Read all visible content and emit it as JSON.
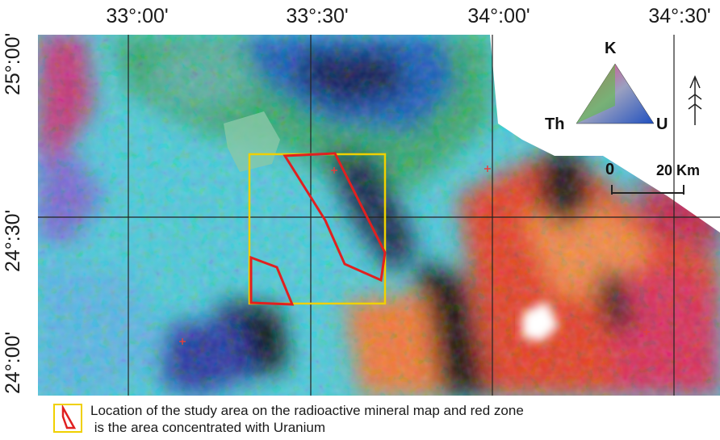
{
  "longitude_labels": [
    "33°:00'",
    "33°:30'",
    "34°:00'",
    "34°:30'"
  ],
  "latitude_labels": [
    "25°:00'",
    "24°:30'",
    "24°:00'"
  ],
  "ternary": {
    "top": "K",
    "left": "Th",
    "right": "U"
  },
  "scale": {
    "start": "0",
    "end": "20 Km"
  },
  "legend": {
    "line1": "Location of the study area on the radioactive mineral map and red zone",
    "line2": " is the area concentrated with Uranium"
  },
  "colors": {
    "study_area": "#f0d000",
    "uranium_zone": "#e02020",
    "grid": "#222222"
  }
}
